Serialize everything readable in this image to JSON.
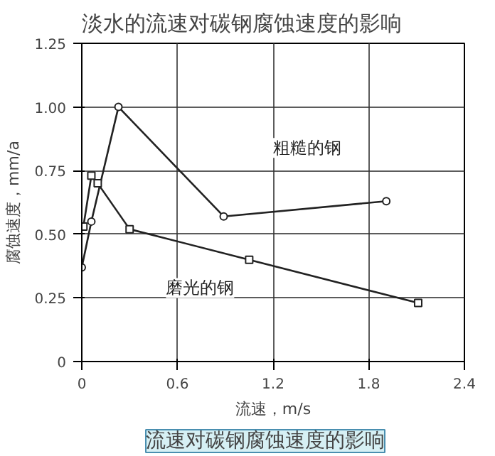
{
  "chart_data": {
    "type": "line",
    "title": "淡水的流速对碳钢腐蚀速度的影响",
    "xlabel": "流速，m/s",
    "ylabel": "腐蚀速度，mm/a",
    "series": [
      {
        "name": "粗糙的钢",
        "color": "#222222",
        "marker": "circle",
        "x": [
          0,
          0.06,
          0.23,
          0.89,
          1.91
        ],
        "values": [
          0.37,
          0.55,
          1.0,
          0.57,
          0.63
        ]
      },
      {
        "name": "磨光的钢",
        "color": "#222222",
        "marker": "square",
        "x": [
          0.01,
          0.06,
          0.1,
          0.3,
          1.05,
          2.11
        ],
        "values": [
          0.53,
          0.73,
          0.7,
          0.52,
          0.4,
          0.23
        ]
      }
    ],
    "xlim": [
      0,
      2.4
    ],
    "xticks": [
      0,
      0.6,
      1.2,
      1.8,
      2.4
    ],
    "ylim": [
      0,
      1.25
    ],
    "yticks": [
      0,
      {
        "value": 0.25,
        "label": "0.25"
      },
      {
        "value": 0.5,
        "label": "0.50"
      },
      {
        "value": 0.75,
        "label": "0.75"
      },
      {
        "value": 1,
        "label": "1.00"
      },
      {
        "value": 1.25,
        "label": "1.25"
      }
    ],
    "grid": true,
    "line_style": "solid",
    "annotations": [
      "流速对碳钢腐蚀速度的影响"
    ]
  }
}
